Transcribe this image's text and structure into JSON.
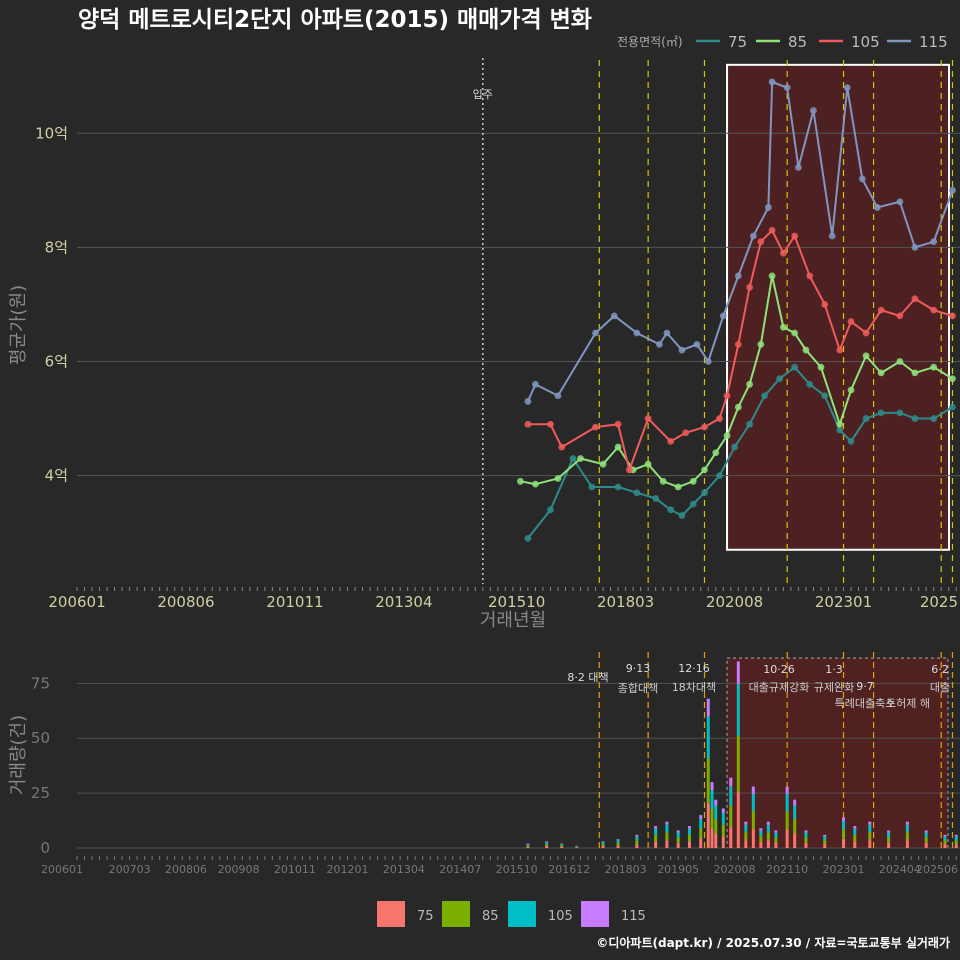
{
  "title": "양덕 메트로시티2단지 아파트(2015) 매매가격 변화",
  "footer": "©디아파트(dapt.kr) / 2025.07.30 / 자료=국토교통부 실거래가",
  "colors": {
    "background": "#282828",
    "series": {
      "75": "#2f8b8b",
      "85": "#8ee27a",
      "105": "#f05a5a",
      "115": "#8096c0"
    },
    "bars": {
      "75": "#f8766d",
      "85": "#7cae00",
      "105": "#00bfc4",
      "115": "#c77cff"
    },
    "policy_line": "#d4c800",
    "bar_policy_line": "#e8a000",
    "highlight_fill": "#5a1f1f"
  },
  "chart_data": [
    {
      "type": "line",
      "title": "양덕 메트로시티2단지 아파트(2015) 매매가격 변화",
      "xlabel": "거래년월",
      "ylabel": "평균가(원)",
      "legend_title": "전용면적(㎡)",
      "legend_position": "top-right",
      "x_ticks": [
        "200601",
        "200806",
        "201011",
        "201304",
        "201510",
        "201803",
        "202008",
        "202301",
        "2025"
      ],
      "y_ticks": [
        "4억",
        "6억",
        "8억",
        "10억"
      ],
      "ylim": [
        2.1,
        11.6
      ],
      "x_range": [
        "2006-01",
        "2025-08"
      ],
      "grid": true,
      "move_in": {
        "label": "입주",
        "x": "2015-01"
      },
      "policy_dates": [
        "2017-08",
        "2018-09",
        "2019-12",
        "2021-10",
        "2023-01",
        "2023-09",
        "2025-03",
        "2025-06"
      ],
      "highlight_box": {
        "x": [
          "2020-06",
          "2025-08"
        ],
        "y": [
          2.7,
          11.2
        ]
      },
      "series": [
        {
          "name": "75",
          "points": [
            [
              "2016-01",
              2.9
            ],
            [
              "2016-07",
              3.4
            ],
            [
              "2017-01",
              4.3
            ],
            [
              "2017-06",
              3.8
            ],
            [
              "2018-01",
              3.8
            ],
            [
              "2018-06",
              3.7
            ],
            [
              "2018-11",
              3.6
            ],
            [
              "2019-03",
              3.4
            ],
            [
              "2019-06",
              3.3
            ],
            [
              "2019-09",
              3.5
            ],
            [
              "2019-12",
              3.7
            ],
            [
              "2020-04",
              4.0
            ],
            [
              "2020-08",
              4.5
            ],
            [
              "2020-12",
              4.9
            ],
            [
              "2021-04",
              5.4
            ],
            [
              "2021-08",
              5.7
            ],
            [
              "2021-12",
              5.9
            ],
            [
              "2022-04",
              5.6
            ],
            [
              "2022-08",
              5.4
            ],
            [
              "2022-12",
              4.8
            ],
            [
              "2023-03",
              4.6
            ],
            [
              "2023-07",
              5.0
            ],
            [
              "2023-11",
              5.1
            ],
            [
              "2024-04",
              5.1
            ],
            [
              "2024-08",
              5.0
            ],
            [
              "2025-01",
              5.0
            ],
            [
              "2025-06",
              5.2
            ]
          ]
        },
        {
          "name": "85",
          "points": [
            [
              "2015-11",
              3.9
            ],
            [
              "2016-03",
              3.85
            ],
            [
              "2016-09",
              3.95
            ],
            [
              "2017-03",
              4.3
            ],
            [
              "2017-09",
              4.2
            ],
            [
              "2018-01",
              4.5
            ],
            [
              "2018-05",
              4.1
            ],
            [
              "2018-09",
              4.2
            ],
            [
              "2019-01",
              3.9
            ],
            [
              "2019-05",
              3.8
            ],
            [
              "2019-09",
              3.9
            ],
            [
              "2019-12",
              4.1
            ],
            [
              "2020-03",
              4.4
            ],
            [
              "2020-06",
              4.7
            ],
            [
              "2020-09",
              5.2
            ],
            [
              "2020-12",
              5.6
            ],
            [
              "2021-03",
              6.3
            ],
            [
              "2021-06",
              7.5
            ],
            [
              "2021-09",
              6.6
            ],
            [
              "2021-12",
              6.5
            ],
            [
              "2022-03",
              6.2
            ],
            [
              "2022-07",
              5.9
            ],
            [
              "2022-12",
              4.9
            ],
            [
              "2023-03",
              5.5
            ],
            [
              "2023-07",
              6.1
            ],
            [
              "2023-11",
              5.8
            ],
            [
              "2024-04",
              6.0
            ],
            [
              "2024-08",
              5.8
            ],
            [
              "2025-01",
              5.9
            ],
            [
              "2025-06",
              5.7
            ]
          ]
        },
        {
          "name": "105",
          "points": [
            [
              "2016-01",
              4.9
            ],
            [
              "2016-07",
              4.9
            ],
            [
              "2016-10",
              4.5
            ],
            [
              "2017-07",
              4.85
            ],
            [
              "2018-01",
              4.9
            ],
            [
              "2018-04",
              4.1
            ],
            [
              "2018-09",
              5.0
            ],
            [
              "2019-03",
              4.6
            ],
            [
              "2019-07",
              4.75
            ],
            [
              "2019-12",
              4.85
            ],
            [
              "2020-04",
              5.0
            ],
            [
              "2020-06",
              5.4
            ],
            [
              "2020-09",
              6.3
            ],
            [
              "2020-12",
              7.3
            ],
            [
              "2021-03",
              8.1
            ],
            [
              "2021-06",
              8.3
            ],
            [
              "2021-09",
              7.9
            ],
            [
              "2021-12",
              8.2
            ],
            [
              "2022-04",
              7.5
            ],
            [
              "2022-08",
              7.0
            ],
            [
              "2022-12",
              6.2
            ],
            [
              "2023-03",
              6.7
            ],
            [
              "2023-07",
              6.5
            ],
            [
              "2023-11",
              6.9
            ],
            [
              "2024-04",
              6.8
            ],
            [
              "2024-08",
              7.1
            ],
            [
              "2025-01",
              6.9
            ],
            [
              "2025-06",
              6.8
            ]
          ]
        },
        {
          "name": "115",
          "points": [
            [
              "2016-01",
              5.3
            ],
            [
              "2016-03",
              5.6
            ],
            [
              "2016-09",
              5.4
            ],
            [
              "2017-07",
              6.5
            ],
            [
              "2017-12",
              6.8
            ],
            [
              "2018-06",
              6.5
            ],
            [
              "2018-12",
              6.3
            ],
            [
              "2019-02",
              6.5
            ],
            [
              "2019-06",
              6.2
            ],
            [
              "2019-10",
              6.3
            ],
            [
              "2020-01",
              6.0
            ],
            [
              "2020-05",
              6.8
            ],
            [
              "2020-09",
              7.5
            ],
            [
              "2021-01",
              8.2
            ],
            [
              "2021-05",
              8.7
            ],
            [
              "2021-06",
              10.9
            ],
            [
              "2021-10",
              10.8
            ],
            [
              "2022-01",
              9.4
            ],
            [
              "2022-05",
              10.4
            ],
            [
              "2022-10",
              8.2
            ],
            [
              "2023-02",
              10.8
            ],
            [
              "2023-06",
              9.2
            ],
            [
              "2023-10",
              8.7
            ],
            [
              "2024-04",
              8.8
            ],
            [
              "2024-08",
              8.0
            ],
            [
              "2025-01",
              8.1
            ],
            [
              "2025-06",
              9.0
            ]
          ]
        }
      ]
    },
    {
      "type": "bar",
      "ylabel": "거래량(건)",
      "x_ticks": [
        "200601",
        "200703",
        "200806",
        "200908",
        "201011",
        "201201",
        "201304",
        "201407",
        "201510",
        "201612",
        "201803",
        "201905",
        "202008",
        "202110",
        "202301",
        "202404",
        "202506"
      ],
      "y_ticks": [
        "0",
        "25",
        "50",
        "75"
      ],
      "ylim": [
        0,
        87
      ],
      "stacked": true,
      "legend_position": "bottom",
      "series_names": [
        "75",
        "85",
        "105",
        "115"
      ],
      "policy_annotations": [
        {
          "line1": "8·2 대책",
          "line2": ""
        },
        {
          "line1": "9·13",
          "line2": "종합대책"
        },
        {
          "line1": "12·16",
          "line2": "18차대책"
        },
        {
          "line1": "10·26",
          "line2": "대출규제강화"
        },
        {
          "line1": "1·3",
          "line2": "규제완화"
        },
        {
          "line1": "9·7",
          "line2": "특례대출축소"
        },
        {
          "line1": "",
          "line2": "토허제 해"
        },
        {
          "line1": "6·2",
          "line2": "대출"
        }
      ],
      "approx_monthly_totals": {
        "2016-01": 2,
        "2016-06": 3,
        "2016-10": 2,
        "2017-02": 1,
        "2017-09": 3,
        "2018-01": 4,
        "2018-06": 6,
        "2018-11": 10,
        "2019-02": 12,
        "2019-05": 8,
        "2019-08": 10,
        "2019-11": 15,
        "2020-01": 68,
        "2020-02": 30,
        "2020-03": 22,
        "2020-05": 18,
        "2020-07": 32,
        "2020-09": 85,
        "2020-11": 12,
        "2021-01": 28,
        "2021-03": 9,
        "2021-05": 12,
        "2021-07": 8,
        "2021-10": 28,
        "2021-12": 22,
        "2022-03": 8,
        "2022-08": 6,
        "2023-01": 14,
        "2023-04": 10,
        "2023-08": 12,
        "2024-01": 8,
        "2024-06": 12,
        "2024-11": 8,
        "2025-04": 6,
        "2025-07": 6
      }
    }
  ]
}
